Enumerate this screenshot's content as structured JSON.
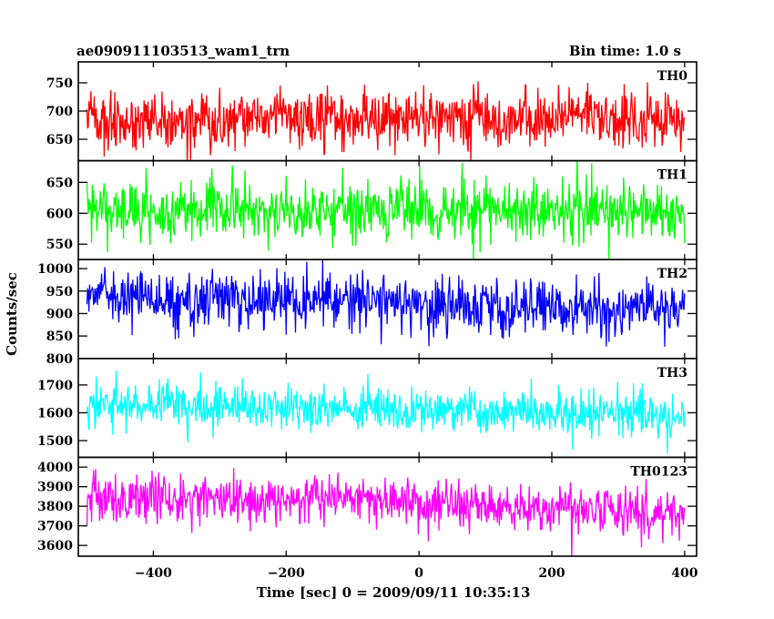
{
  "chart_data": {
    "type": "line",
    "title_left": "ae090911103513_wam1_trn",
    "title_right": "Bin time: 1.0 s",
    "xlabel": "Time [sec] 0 = 2009/09/11 10:35:13",
    "ylabel": "Counts/sec",
    "xlim": [
      -513,
      418
    ],
    "x_range": [
      -500,
      400
    ],
    "x_step": 1,
    "x_ticks": [
      -400,
      -200,
      0,
      200,
      400
    ],
    "seed": 91103513,
    "panels": [
      {
        "name": "TH0",
        "color": "#ff0000",
        "ylim": [
          612,
          787
        ],
        "y_ticks": [
          650,
          700,
          750
        ],
        "mean_start": 680,
        "mean_mid": 690,
        "mean_end": 682,
        "sigma": 26
      },
      {
        "name": "TH1",
        "color": "#00ff00",
        "ylim": [
          525,
          685
        ],
        "y_ticks": [
          550,
          600,
          650
        ],
        "mean_start": 603,
        "mean_mid": 606,
        "mean_end": 600,
        "sigma": 24
      },
      {
        "name": "TH2",
        "color": "#0000ff",
        "ylim": [
          800,
          1020
        ],
        "y_ticks": [
          800,
          850,
          900,
          950,
          1000
        ],
        "mean_start": 937,
        "mean_mid": 925,
        "mean_end": 908,
        "sigma": 31
      },
      {
        "name": "TH3",
        "color": "#00ffff",
        "ylim": [
          1440,
          1795
        ],
        "y_ticks": [
          1500,
          1600,
          1700
        ],
        "mean_start": 1628,
        "mean_mid": 1610,
        "mean_end": 1590,
        "sigma": 40
      },
      {
        "name": "TH0123",
        "color": "#ff00ff",
        "ylim": [
          3545,
          4050
        ],
        "y_ticks": [
          3600,
          3700,
          3800,
          3900,
          4000
        ],
        "mean_start": 3850,
        "mean_mid": 3830,
        "mean_end": 3755,
        "sigma": 62
      }
    ]
  }
}
